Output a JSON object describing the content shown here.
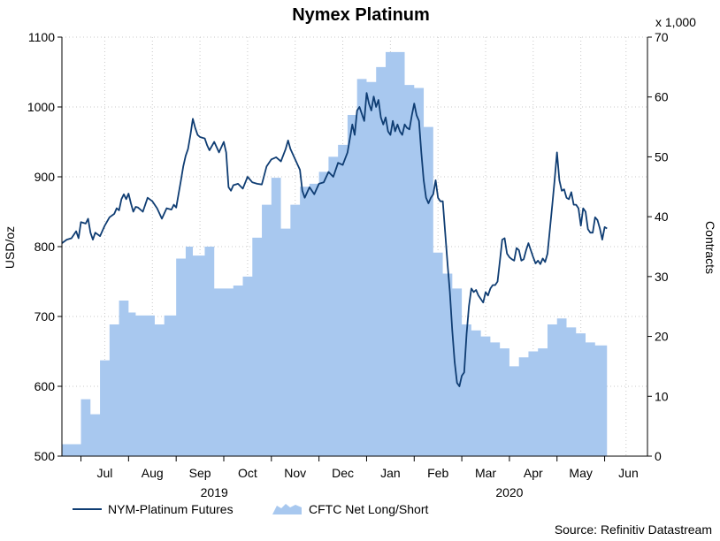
{
  "chart_data": {
    "type": "line+area",
    "title": "Nymex Platinum",
    "ylabel": "USD/oz",
    "y2label": "Contracts",
    "y2_multiplier": "x 1,000",
    "ylim": [
      500,
      1100
    ],
    "y2lim": [
      0,
      70
    ],
    "yticks": [
      500,
      600,
      700,
      800,
      900,
      1000,
      1100
    ],
    "y2ticks": [
      0,
      10,
      20,
      30,
      40,
      50,
      60,
      70
    ],
    "x_range": [
      0,
      12.3
    ],
    "months": [
      {
        "label": "Jul",
        "start": 0.4
      },
      {
        "label": "Aug",
        "start": 1.4
      },
      {
        "label": "Sep",
        "start": 2.4
      },
      {
        "label": "Oct",
        "start": 3.4
      },
      {
        "label": "Nov",
        "start": 4.4
      },
      {
        "label": "Dec",
        "start": 5.4
      },
      {
        "label": "Jan",
        "start": 6.4
      },
      {
        "label": "Feb",
        "start": 7.4
      },
      {
        "label": "Mar",
        "start": 8.4
      },
      {
        "label": "Apr",
        "start": 9.4
      },
      {
        "label": "May",
        "start": 10.4
      },
      {
        "label": "Jun",
        "start": 11.4
      }
    ],
    "years": [
      {
        "label": "2019",
        "x": 3.2
      },
      {
        "label": "2020",
        "x": 9.4
      }
    ],
    "grid": true,
    "series": [
      {
        "name": "NYM-Platinum Futures",
        "type": "line",
        "axis": "left",
        "color": "#0f3d73",
        "points": [
          [
            0.0,
            805
          ],
          [
            0.1,
            810
          ],
          [
            0.2,
            812
          ],
          [
            0.3,
            822
          ],
          [
            0.35,
            812
          ],
          [
            0.4,
            835
          ],
          [
            0.5,
            833
          ],
          [
            0.55,
            840
          ],
          [
            0.6,
            820
          ],
          [
            0.65,
            810
          ],
          [
            0.7,
            820
          ],
          [
            0.8,
            815
          ],
          [
            0.9,
            830
          ],
          [
            1.0,
            842
          ],
          [
            1.1,
            847
          ],
          [
            1.15,
            855
          ],
          [
            1.2,
            852
          ],
          [
            1.25,
            868
          ],
          [
            1.3,
            875
          ],
          [
            1.35,
            868
          ],
          [
            1.4,
            876
          ],
          [
            1.45,
            862
          ],
          [
            1.5,
            850
          ],
          [
            1.55,
            857
          ],
          [
            1.6,
            856
          ],
          [
            1.7,
            850
          ],
          [
            1.8,
            870
          ],
          [
            1.9,
            865
          ],
          [
            2.0,
            855
          ],
          [
            2.1,
            840
          ],
          [
            2.2,
            855
          ],
          [
            2.3,
            853
          ],
          [
            2.35,
            860
          ],
          [
            2.4,
            856
          ],
          [
            2.5,
            895
          ],
          [
            2.55,
            915
          ],
          [
            2.6,
            930
          ],
          [
            2.65,
            940
          ],
          [
            2.7,
            960
          ],
          [
            2.75,
            983
          ],
          [
            2.8,
            970
          ],
          [
            2.85,
            960
          ],
          [
            2.9,
            957
          ],
          [
            3.0,
            955
          ],
          [
            3.05,
            945
          ],
          [
            3.1,
            938
          ],
          [
            3.2,
            950
          ],
          [
            3.3,
            935
          ],
          [
            3.4,
            950
          ],
          [
            3.45,
            935
          ],
          [
            3.5,
            885
          ],
          [
            3.55,
            880
          ],
          [
            3.6,
            888
          ],
          [
            3.7,
            890
          ],
          [
            3.8,
            883
          ],
          [
            3.9,
            900
          ],
          [
            4.0,
            892
          ],
          [
            4.1,
            890
          ],
          [
            4.2,
            889
          ],
          [
            4.3,
            915
          ],
          [
            4.4,
            925
          ],
          [
            4.5,
            928
          ],
          [
            4.6,
            922
          ],
          [
            4.7,
            940
          ],
          [
            4.75,
            952
          ],
          [
            4.8,
            940
          ],
          [
            4.9,
            925
          ],
          [
            5.0,
            910
          ],
          [
            5.05,
            880
          ],
          [
            5.1,
            870
          ],
          [
            5.2,
            885
          ],
          [
            5.3,
            875
          ],
          [
            5.4,
            890
          ],
          [
            5.5,
            892
          ],
          [
            5.6,
            907
          ],
          [
            5.7,
            900
          ],
          [
            5.8,
            920
          ],
          [
            5.9,
            917
          ],
          [
            6.0,
            935
          ],
          [
            6.05,
            955
          ],
          [
            6.1,
            975
          ],
          [
            6.15,
            960
          ],
          [
            6.2,
            995
          ],
          [
            6.25,
            1000
          ],
          [
            6.3,
            990
          ],
          [
            6.35,
            980
          ],
          [
            6.4,
            1020
          ],
          [
            6.45,
            1005
          ],
          [
            6.5,
            995
          ],
          [
            6.55,
            1015
          ],
          [
            6.6,
            1000
          ],
          [
            6.65,
            1010
          ],
          [
            6.7,
            985
          ],
          [
            6.75,
            975
          ],
          [
            6.8,
            985
          ],
          [
            6.85,
            965
          ],
          [
            6.9,
            960
          ],
          [
            6.95,
            980
          ],
          [
            7.0,
            965
          ],
          [
            7.05,
            975
          ],
          [
            7.1,
            965
          ],
          [
            7.15,
            960
          ],
          [
            7.2,
            975
          ],
          [
            7.25,
            970
          ],
          [
            7.3,
            968
          ],
          [
            7.35,
            988
          ],
          [
            7.4,
            1005
          ],
          [
            7.45,
            988
          ],
          [
            7.5,
            980
          ],
          [
            7.55,
            935
          ],
          [
            7.6,
            895
          ],
          [
            7.65,
            870
          ],
          [
            7.7,
            862
          ],
          [
            7.75,
            870
          ],
          [
            7.8,
            875
          ],
          [
            7.85,
            895
          ],
          [
            7.9,
            870
          ],
          [
            7.95,
            865
          ],
          [
            8.0,
            865
          ],
          [
            8.05,
            820
          ],
          [
            8.1,
            775
          ],
          [
            8.15,
            735
          ],
          [
            8.2,
            680
          ],
          [
            8.25,
            635
          ],
          [
            8.3,
            605
          ],
          [
            8.35,
            600
          ],
          [
            8.4,
            615
          ],
          [
            8.45,
            620
          ],
          [
            8.5,
            675
          ],
          [
            8.55,
            715
          ],
          [
            8.6,
            740
          ],
          [
            8.65,
            735
          ],
          [
            8.7,
            738
          ],
          [
            8.75,
            730
          ],
          [
            8.8,
            725
          ],
          [
            8.85,
            720
          ],
          [
            8.9,
            735
          ],
          [
            8.95,
            730
          ],
          [
            9.0,
            740
          ],
          [
            9.05,
            745
          ],
          [
            9.1,
            745
          ],
          [
            9.15,
            750
          ],
          [
            9.2,
            780
          ],
          [
            9.25,
            810
          ],
          [
            9.3,
            812
          ],
          [
            9.35,
            790
          ],
          [
            9.4,
            785
          ],
          [
            9.45,
            782
          ],
          [
            9.5,
            780
          ],
          [
            9.55,
            798
          ],
          [
            9.6,
            795
          ],
          [
            9.65,
            780
          ],
          [
            9.7,
            782
          ],
          [
            9.75,
            795
          ],
          [
            9.8,
            805
          ],
          [
            9.85,
            795
          ],
          [
            9.9,
            785
          ],
          [
            9.95,
            776
          ],
          [
            10.0,
            780
          ],
          [
            10.05,
            775
          ],
          [
            10.1,
            783
          ],
          [
            10.15,
            778
          ],
          [
            10.2,
            790
          ],
          [
            10.25,
            825
          ],
          [
            10.3,
            860
          ],
          [
            10.35,
            895
          ],
          [
            10.4,
            935
          ],
          [
            10.45,
            895
          ],
          [
            10.5,
            880
          ],
          [
            10.55,
            882
          ],
          [
            10.6,
            870
          ],
          [
            10.65,
            868
          ],
          [
            10.7,
            878
          ],
          [
            10.75,
            860
          ],
          [
            10.8,
            860
          ],
          [
            10.85,
            855
          ],
          [
            10.9,
            830
          ],
          [
            10.95,
            855
          ],
          [
            11.0,
            850
          ],
          [
            11.05,
            825
          ],
          [
            11.1,
            820
          ],
          [
            11.15,
            820
          ],
          [
            11.2,
            842
          ],
          [
            11.25,
            838
          ],
          [
            11.3,
            826
          ],
          [
            11.35,
            810
          ],
          [
            11.4,
            828
          ],
          [
            11.45,
            826
          ]
        ]
      },
      {
        "name": "CFTC Net Long/Short",
        "type": "area",
        "axis": "right",
        "color": "#a8c8ef",
        "steps": [
          [
            0.0,
            2
          ],
          [
            0.4,
            9.5
          ],
          [
            0.6,
            7
          ],
          [
            0.8,
            16
          ],
          [
            1.0,
            22
          ],
          [
            1.2,
            26
          ],
          [
            1.4,
            24
          ],
          [
            1.55,
            23.5
          ],
          [
            1.95,
            22
          ],
          [
            2.15,
            23.5
          ],
          [
            2.4,
            33
          ],
          [
            2.6,
            35
          ],
          [
            2.75,
            33.5
          ],
          [
            3.0,
            35
          ],
          [
            3.2,
            28
          ],
          [
            3.6,
            28.5
          ],
          [
            3.8,
            30
          ],
          [
            4.0,
            36.5
          ],
          [
            4.2,
            42
          ],
          [
            4.4,
            46.5
          ],
          [
            4.6,
            38
          ],
          [
            4.8,
            42
          ],
          [
            5.0,
            45
          ],
          [
            5.2,
            45.5
          ],
          [
            5.4,
            47.5
          ],
          [
            5.6,
            50
          ],
          [
            5.8,
            52
          ],
          [
            6.0,
            57
          ],
          [
            6.2,
            63
          ],
          [
            6.4,
            62.5
          ],
          [
            6.6,
            65
          ],
          [
            6.8,
            67.5
          ],
          [
            7.2,
            62
          ],
          [
            7.4,
            61.5
          ],
          [
            7.6,
            55
          ],
          [
            7.8,
            34
          ],
          [
            8.0,
            30.5
          ],
          [
            8.2,
            28
          ],
          [
            8.4,
            22
          ],
          [
            8.6,
            21
          ],
          [
            8.8,
            20
          ],
          [
            9.0,
            19
          ],
          [
            9.2,
            18
          ],
          [
            9.4,
            15
          ],
          [
            9.6,
            16.5
          ],
          [
            9.8,
            17.5
          ],
          [
            10.0,
            18
          ],
          [
            10.2,
            22
          ],
          [
            10.4,
            23
          ],
          [
            10.6,
            21.5
          ],
          [
            10.8,
            20.5
          ],
          [
            11.0,
            19
          ],
          [
            11.2,
            18.5
          ],
          [
            11.45,
            18.5
          ]
        ]
      }
    ],
    "legend": [
      {
        "label": "NYM-Platinum Futures",
        "kind": "line"
      },
      {
        "label": "CFTC Net Long/Short",
        "kind": "area"
      }
    ],
    "legend_position": "bottom-left",
    "source": "Source: Refinitiv Datastream"
  }
}
